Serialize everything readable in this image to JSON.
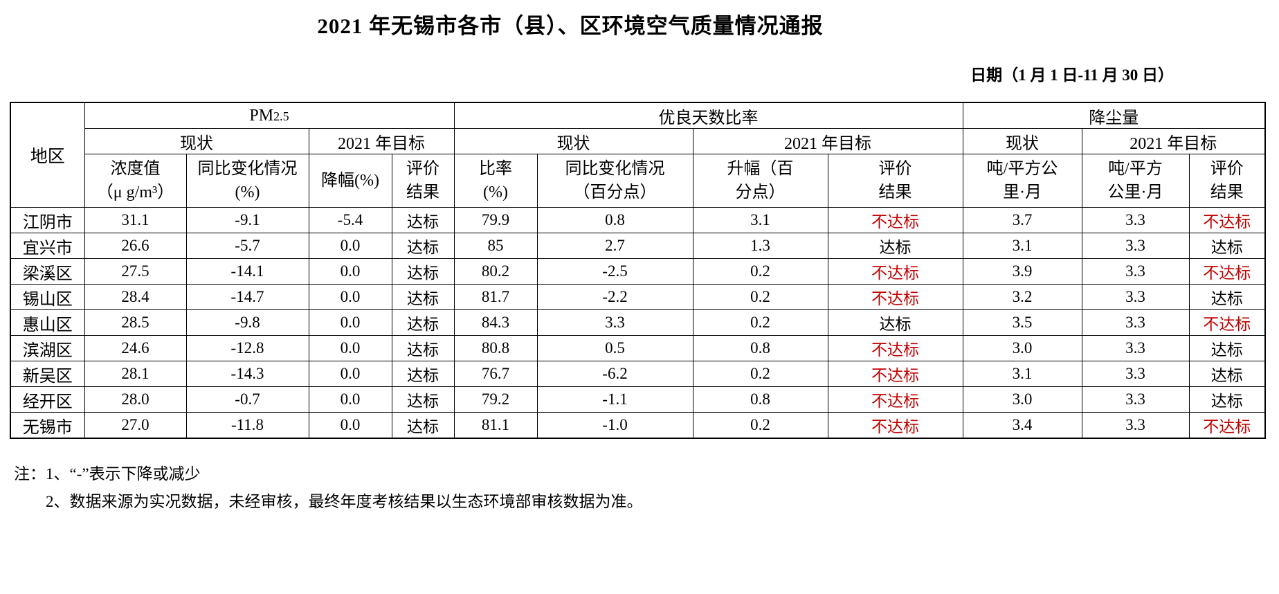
{
  "page": {
    "title": "2021 年无锡市各市（县）、区环境空气质量情况通报",
    "date_line": "日期（1 月 1 日-11 月 30 日）"
  },
  "table": {
    "corner": "地区",
    "sections": {
      "pm25_prefix": "PM",
      "pm25_sub": "2.5",
      "good_days": "优良天数比率",
      "dustfall": "降尘量"
    },
    "subheaders": {
      "current": "现状",
      "target2021": "2021 年目标"
    },
    "columns": {
      "pm_value": "浓度值\n（μ g/m³）",
      "pm_change": "同比变化情况\n(%)",
      "pm_drop": "降幅(%)",
      "pm_eval": "评价\n结果",
      "ratio": "比率\n(%)",
      "ratio_change": "同比变化情况\n（百分点）",
      "ratio_rise": "升幅（百\n分点）",
      "ratio_eval": "评价\n结果",
      "dust_current": "吨/平方公\n里·月",
      "dust_target": "吨/平方\n公里·月",
      "dust_eval": "评价\n结果"
    },
    "pass_text": "达标",
    "fail_text": "不达标",
    "fail_color": "#c00000",
    "rows": [
      {
        "region": "江阴市",
        "values": [
          "31.1",
          "-9.1",
          "-5.4",
          "达标",
          "79.9",
          "0.8",
          "3.1",
          "不达标",
          "3.7",
          "3.3",
          "不达标"
        ]
      },
      {
        "region": "宜兴市",
        "values": [
          "26.6",
          "-5.7",
          "0.0",
          "达标",
          "85",
          "2.7",
          "1.3",
          "达标",
          "3.1",
          "3.3",
          "达标"
        ]
      },
      {
        "region": "梁溪区",
        "values": [
          "27.5",
          "-14.1",
          "0.0",
          "达标",
          "80.2",
          "-2.5",
          "0.2",
          "不达标",
          "3.9",
          "3.3",
          "不达标"
        ]
      },
      {
        "region": "锡山区",
        "values": [
          "28.4",
          "-14.7",
          "0.0",
          "达标",
          "81.7",
          "-2.2",
          "0.2",
          "不达标",
          "3.2",
          "3.3",
          "达标"
        ]
      },
      {
        "region": "惠山区",
        "values": [
          "28.5",
          "-9.8",
          "0.0",
          "达标",
          "84.3",
          "3.3",
          "0.2",
          "达标",
          "3.5",
          "3.3",
          "不达标"
        ]
      },
      {
        "region": "滨湖区",
        "values": [
          "24.6",
          "-12.8",
          "0.0",
          "达标",
          "80.8",
          "0.5",
          "0.8",
          "不达标",
          "3.0",
          "3.3",
          "达标"
        ]
      },
      {
        "region": "新吴区",
        "values": [
          "28.1",
          "-14.3",
          "0.0",
          "达标",
          "76.7",
          "-6.2",
          "0.2",
          "不达标",
          "3.1",
          "3.3",
          "达标"
        ]
      },
      {
        "region": "经开区",
        "values": [
          "28.0",
          "-0.7",
          "0.0",
          "达标",
          "79.2",
          "-1.1",
          "0.8",
          "不达标",
          "3.0",
          "3.3",
          "达标"
        ]
      },
      {
        "region": "无锡市",
        "values": [
          "27.0",
          "-11.8",
          "0.0",
          "达标",
          "81.1",
          "-1.0",
          "0.2",
          "不达标",
          "3.4",
          "3.3",
          "不达标"
        ]
      }
    ]
  },
  "notes": [
    "注：1、“-”表示下降或减少",
    "2、数据来源为实况数据，未经审核，最终年度考核结果以生态环境部审核数据为准。"
  ]
}
